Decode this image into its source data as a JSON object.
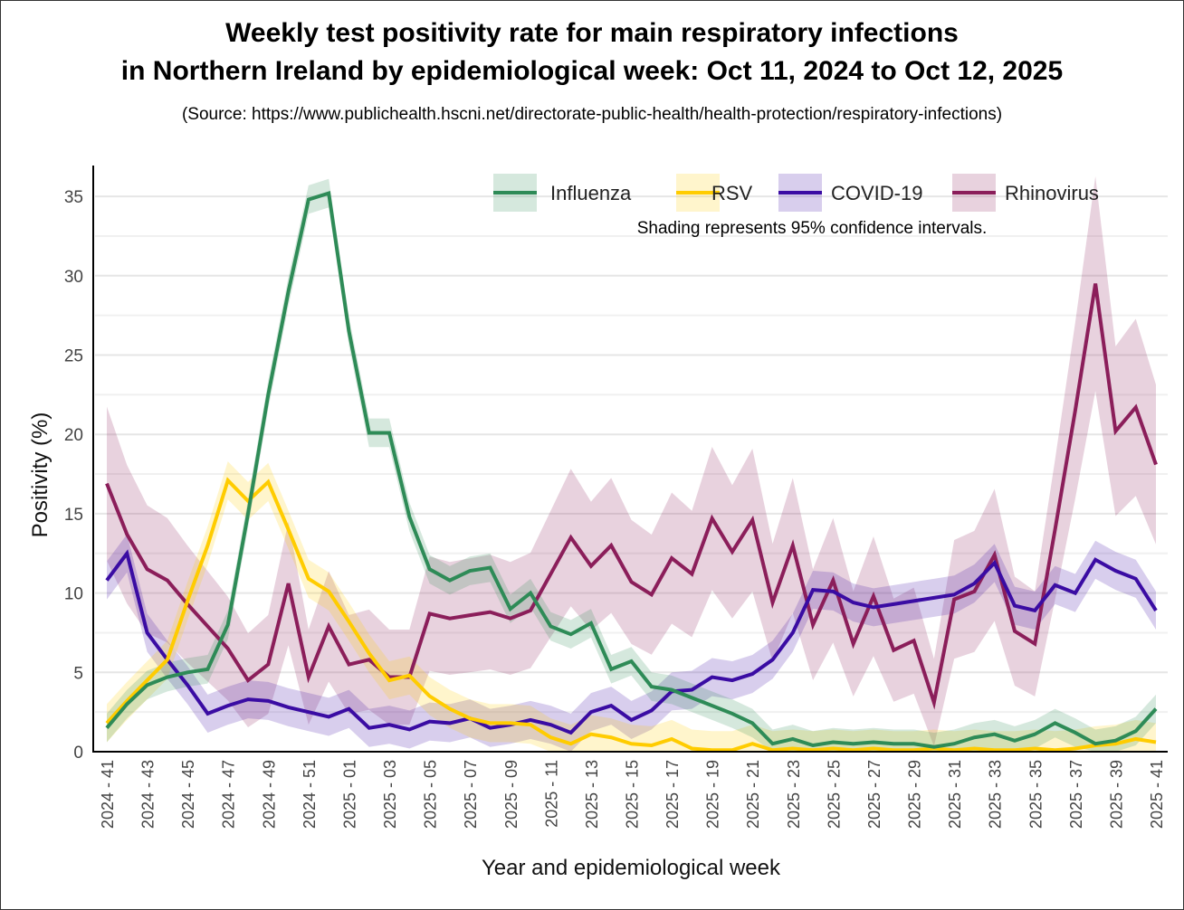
{
  "chart_data": {
    "type": "line",
    "title_line1": "Weekly test positivity rate for main respiratory infections",
    "title_line2": "in Northern Ireland by epidemiological week: Oct 11, 2024 to Oct 12, 2025",
    "source": "(Source: https://www.publichealth.hscni.net/directorate-public-health/health-protection/respiratory-infections)",
    "xlabel": "Year and epidemiological week",
    "ylabel": "Positivity (%)",
    "ylim": [
      0,
      37
    ],
    "yticks": [
      "0",
      "5",
      "10",
      "15",
      "20",
      "25",
      "30",
      "35"
    ],
    "ytick_values": [
      0,
      5,
      10,
      15,
      20,
      25,
      30,
      35
    ],
    "x": [
      "2024 - 41",
      "2024 - 42",
      "2024 - 43",
      "2024 - 44",
      "2024 - 45",
      "2024 - 46",
      "2024 - 47",
      "2024 - 48",
      "2024 - 49",
      "2024 - 50",
      "2024 - 51",
      "2024 - 52",
      "2025 - 01",
      "2025 - 02",
      "2025 - 03",
      "2025 - 04",
      "2025 - 05",
      "2025 - 06",
      "2025 - 07",
      "2025 - 08",
      "2025 - 09",
      "2025 - 10",
      "2025 - 11",
      "2025 - 12",
      "2025 - 13",
      "2025 - 14",
      "2025 - 15",
      "2025 - 16",
      "2025 - 17",
      "2025 - 18",
      "2025 - 19",
      "2025 - 20",
      "2025 - 21",
      "2025 - 22",
      "2025 - 23",
      "2025 - 24",
      "2025 - 25",
      "2025 - 26",
      "2025 - 27",
      "2025 - 28",
      "2025 - 29",
      "2025 - 30",
      "2025 - 31",
      "2025 - 32",
      "2025 - 33",
      "2025 - 34",
      "2025 - 35",
      "2025 - 36",
      "2025 - 37",
      "2025 - 38",
      "2025 - 39",
      "2025 - 40",
      "2025 - 41"
    ],
    "xticks_every": 2,
    "grid": true,
    "legend_placement": "top-right",
    "annotation": "Shading represents 95% confidence intervals.",
    "series": [
      {
        "name": "Influenza",
        "color": "#2e8b57",
        "ci_halfwidth": 0.9,
        "values": [
          1.5,
          3.0,
          4.2,
          4.7,
          5.0,
          5.2,
          8.0,
          15.0,
          22.5,
          29.0,
          34.8,
          35.2,
          26.5,
          20.1,
          20.1,
          14.8,
          11.5,
          10.8,
          11.4,
          11.6,
          9.0,
          10.0,
          7.9,
          7.4,
          8.1,
          5.2,
          5.7,
          4.1,
          3.9,
          3.4,
          2.9,
          2.4,
          1.8,
          0.5,
          0.8,
          0.4,
          0.6,
          0.5,
          0.6,
          0.5,
          0.5,
          0.3,
          0.5,
          0.9,
          1.1,
          0.7,
          1.1,
          1.8,
          1.2,
          0.5,
          0.7,
          1.3,
          2.7
        ]
      },
      {
        "name": "RSV",
        "color": "#ffcc00",
        "ci_halfwidth": 1.2,
        "values": [
          1.8,
          3.2,
          4.5,
          5.8,
          9.5,
          13.0,
          17.1,
          15.8,
          17.0,
          14.0,
          10.9,
          10.1,
          8.2,
          6.2,
          4.5,
          4.8,
          3.5,
          2.7,
          2.1,
          1.8,
          1.8,
          1.7,
          0.9,
          0.5,
          1.1,
          0.9,
          0.5,
          0.4,
          0.8,
          0.2,
          0.1,
          0.1,
          0.5,
          0.1,
          0.2,
          0.1,
          0.2,
          0.1,
          0.2,
          0.1,
          0.1,
          0.2,
          0.1,
          0.2,
          0.1,
          0.1,
          0.2,
          0.1,
          0.2,
          0.4,
          0.5,
          0.8,
          0.6
        ]
      },
      {
        "name": "COVID-19",
        "color": "#3a0ca3",
        "ci_halfwidth": 1.2,
        "values": [
          10.8,
          12.5,
          7.5,
          5.8,
          4.2,
          2.4,
          2.9,
          3.3,
          3.2,
          2.8,
          2.5,
          2.2,
          2.7,
          1.5,
          1.7,
          1.4,
          1.9,
          1.8,
          2.1,
          1.5,
          1.7,
          2.0,
          1.7,
          1.2,
          2.5,
          2.9,
          2.0,
          2.6,
          3.8,
          3.9,
          4.7,
          4.5,
          4.9,
          5.8,
          7.5,
          10.2,
          10.1,
          9.4,
          9.1,
          9.3,
          9.5,
          9.7,
          9.9,
          10.6,
          11.9,
          9.2,
          8.9,
          10.5,
          10.0,
          12.1,
          11.4,
          10.9,
          8.9
        ]
      },
      {
        "name": "Rhinovirus",
        "color": "#8b1e5a",
        "ci_halfwidth": 3.8,
        "values": [
          16.9,
          13.7,
          11.5,
          10.8,
          9.3,
          7.9,
          6.5,
          4.5,
          5.5,
          10.6,
          4.7,
          7.9,
          5.5,
          5.8,
          4.7,
          4.7,
          8.7,
          8.4,
          8.6,
          8.8,
          8.4,
          8.9,
          11.2,
          13.5,
          11.7,
          13.0,
          10.7,
          9.9,
          12.2,
          11.2,
          14.7,
          12.6,
          14.6,
          9.4,
          13.0,
          8.0,
          10.8,
          6.8,
          9.8,
          6.4,
          7.0,
          3.1,
          9.6,
          10.1,
          12.4,
          7.6,
          6.8,
          14.0,
          21.5,
          29.5,
          20.2,
          21.7,
          18.1
        ]
      }
    ]
  }
}
